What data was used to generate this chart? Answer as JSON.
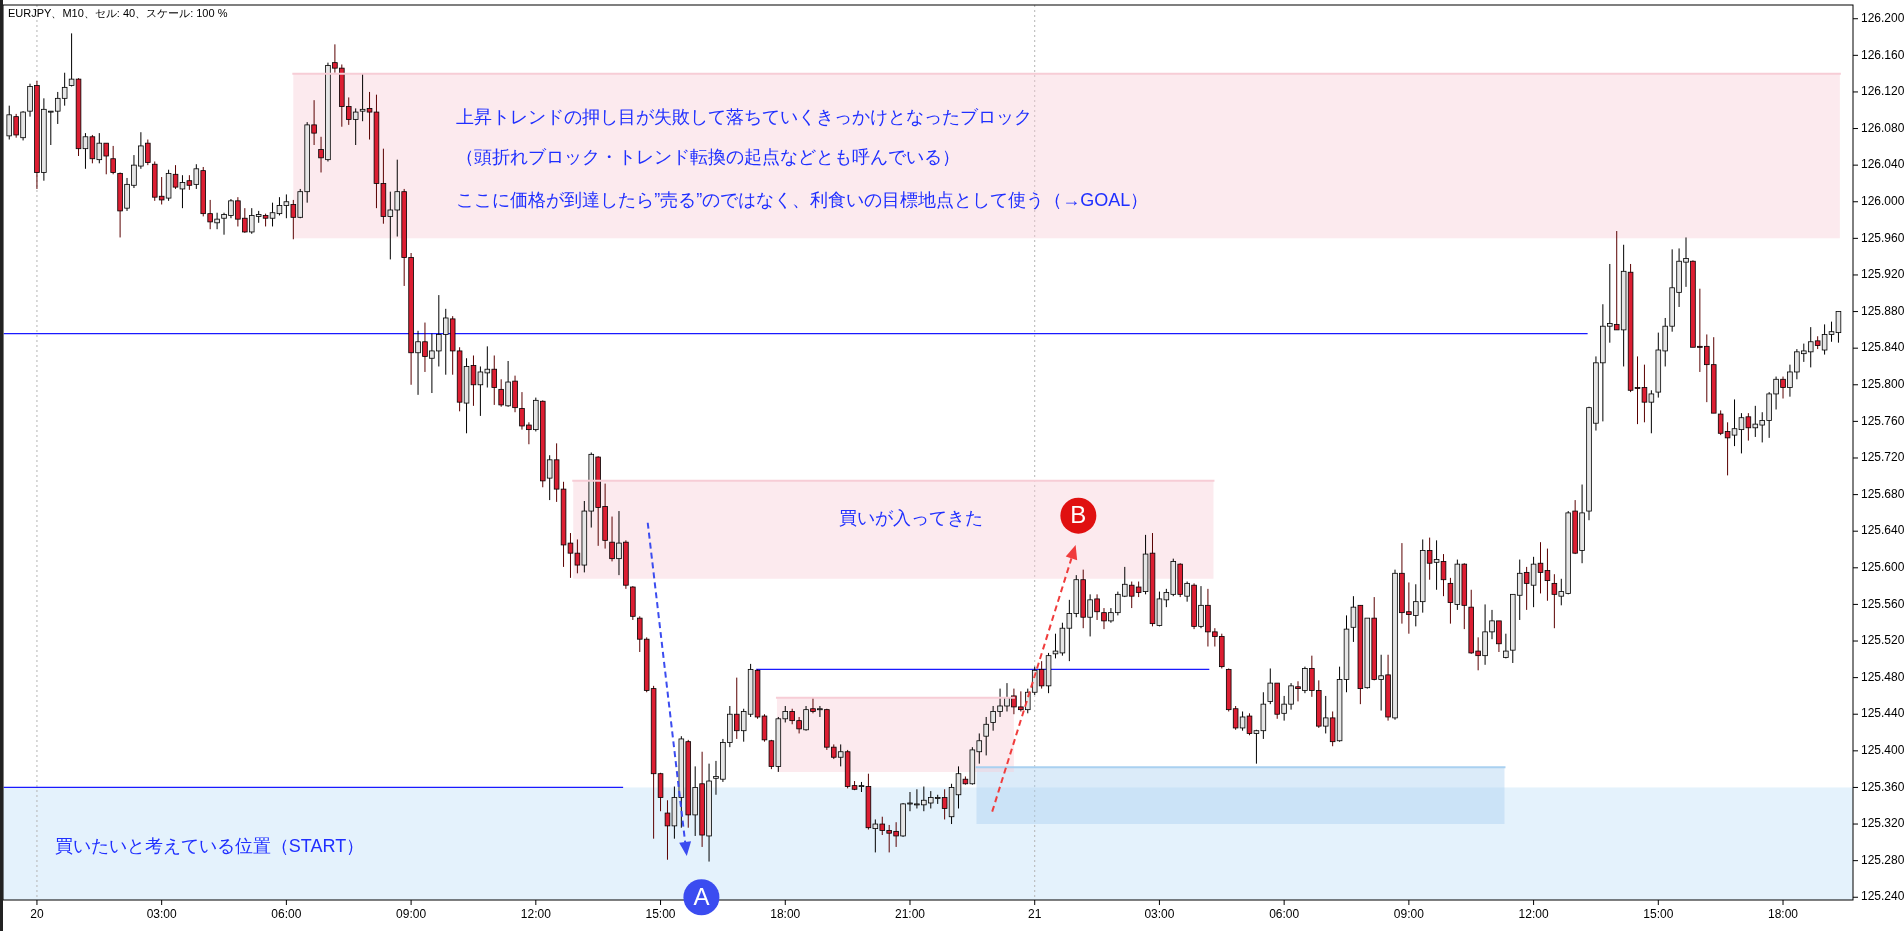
{
  "chart_data": {
    "type": "candlestick",
    "title": "EURJPY、M10、セル: 40、スケール: 100 %",
    "ylim": [
      125.237,
      126.215
    ],
    "xlim": [
      "--01-19T23:11",
      "--01-21T19:41"
    ],
    "xticks": [
      {
        "value": "--01-20T00:00",
        "label": "20"
      },
      {
        "value": "--01-20T03:00",
        "label": "03:00"
      },
      {
        "value": "--01-20T06:00",
        "label": "06:00"
      },
      {
        "value": "--01-20T09:00",
        "label": "09:00"
      },
      {
        "value": "--01-20T12:00",
        "label": "12:00"
      },
      {
        "value": "--01-20T15:00",
        "label": "15:00"
      },
      {
        "value": "--01-20T18:00",
        "label": "18:00"
      },
      {
        "value": "--01-20T21:00",
        "label": "21:00"
      },
      {
        "value": "--01-21T00:00",
        "label": "21"
      },
      {
        "value": "--01-21T03:00",
        "label": "03:00"
      },
      {
        "value": "--01-21T06:00",
        "label": "06:00"
      },
      {
        "value": "--01-21T09:00",
        "label": "09:00"
      },
      {
        "value": "--01-21T12:00",
        "label": "12:00"
      },
      {
        "value": "--01-21T15:00",
        "label": "15:00"
      },
      {
        "value": "--01-21T18:00",
        "label": "18:00"
      }
    ],
    "x": [
      "--01-19T23:20",
      "--01-19T23:30",
      "--01-19T23:40",
      "--01-19T23:50",
      "--01-20T00:00",
      "--01-20T00:10",
      "--01-20T00:20",
      "--01-20T00:30",
      "--01-20T00:40",
      "--01-20T00:50",
      "--01-20T01:00",
      "--01-20T01:10",
      "--01-20T01:20",
      "--01-20T01:30",
      "--01-20T01:40",
      "--01-20T01:50",
      "--01-20T02:00",
      "--01-20T02:10",
      "--01-20T02:20",
      "--01-20T02:30",
      "--01-20T02:40",
      "--01-20T02:50",
      "--01-20T03:00",
      "--01-20T03:10",
      "--01-20T03:20",
      "--01-20T03:30",
      "--01-20T03:40",
      "--01-20T03:50",
      "--01-20T04:00",
      "--01-20T04:10",
      "--01-20T04:20",
      "--01-20T04:30",
      "--01-20T04:40",
      "--01-20T04:50",
      "--01-20T05:00",
      "--01-20T05:10",
      "--01-20T05:20",
      "--01-20T05:30",
      "--01-20T05:40",
      "--01-20T05:50",
      "--01-20T06:00",
      "--01-20T06:10",
      "--01-20T06:20",
      "--01-20T06:30",
      "--01-20T06:40",
      "--01-20T06:50",
      "--01-20T07:00",
      "--01-20T07:10",
      "--01-20T07:20",
      "--01-20T07:30",
      "--01-20T07:40",
      "--01-20T07:50",
      "--01-20T08:00",
      "--01-20T08:10",
      "--01-20T08:20",
      "--01-20T08:30",
      "--01-20T08:40",
      "--01-20T08:50",
      "--01-20T09:00",
      "--01-20T09:10",
      "--01-20T09:20",
      "--01-20T09:30",
      "--01-20T09:40",
      "--01-20T09:50",
      "--01-20T10:00",
      "--01-20T10:10",
      "--01-20T10:20",
      "--01-20T10:30",
      "--01-20T10:40",
      "--01-20T10:50",
      "--01-20T11:00",
      "--01-20T11:10",
      "--01-20T11:20",
      "--01-20T11:30",
      "--01-20T11:40",
      "--01-20T11:50",
      "--01-20T12:00",
      "--01-20T12:10",
      "--01-20T12:20",
      "--01-20T12:30",
      "--01-20T12:40",
      "--01-20T12:50",
      "--01-20T13:00",
      "--01-20T13:10",
      "--01-20T13:20",
      "--01-20T13:30",
      "--01-20T13:40",
      "--01-20T13:50",
      "--01-20T14:00",
      "--01-20T14:10",
      "--01-20T14:20",
      "--01-20T14:30",
      "--01-20T14:40",
      "--01-20T14:50",
      "--01-20T15:00",
      "--01-20T15:10",
      "--01-20T15:20",
      "--01-20T15:30",
      "--01-20T15:40",
      "--01-20T15:50",
      "--01-20T16:00",
      "--01-20T16:10",
      "--01-20T16:20",
      "--01-20T16:30",
      "--01-20T16:40",
      "--01-20T16:50",
      "--01-20T17:00",
      "--01-20T17:10",
      "--01-20T17:20",
      "--01-20T17:30",
      "--01-20T17:40",
      "--01-20T17:50",
      "--01-20T18:00",
      "--01-20T18:10",
      "--01-20T18:20",
      "--01-20T18:30",
      "--01-20T18:40",
      "--01-20T18:50",
      "--01-20T19:00",
      "--01-20T19:10",
      "--01-20T19:20",
      "--01-20T19:30",
      "--01-20T19:40",
      "--01-20T19:50",
      "--01-20T20:00",
      "--01-20T20:10",
      "--01-20T20:20",
      "--01-20T20:30",
      "--01-20T20:40",
      "--01-20T20:50",
      "--01-20T21:00",
      "--01-20T21:10",
      "--01-20T21:20",
      "--01-20T21:30",
      "--01-20T21:40",
      "--01-20T21:50",
      "--01-20T22:00",
      "--01-20T22:10",
      "--01-20T22:20",
      "--01-20T22:30",
      "--01-20T22:40",
      "--01-20T22:50",
      "--01-20T23:00",
      "--01-20T23:10",
      "--01-20T23:20",
      "--01-20T23:30",
      "--01-20T23:40",
      "--01-20T23:50",
      "--01-21T00:00",
      "--01-21T00:10",
      "--01-21T00:20",
      "--01-21T00:30",
      "--01-21T00:40",
      "--01-21T00:50",
      "--01-21T01:00",
      "--01-21T01:10",
      "--01-21T01:20",
      "--01-21T01:30",
      "--01-21T01:40",
      "--01-21T01:50",
      "--01-21T02:00",
      "--01-21T02:10",
      "--01-21T02:20",
      "--01-21T02:30",
      "--01-21T02:40",
      "--01-21T02:50",
      "--01-21T03:00",
      "--01-21T03:10",
      "--01-21T03:20",
      "--01-21T03:30",
      "--01-21T03:40",
      "--01-21T03:50",
      "--01-21T04:00",
      "--01-21T04:10",
      "--01-21T04:20",
      "--01-21T04:30",
      "--01-21T04:40",
      "--01-21T04:50",
      "--01-21T05:00",
      "--01-21T05:10",
      "--01-21T05:20",
      "--01-21T05:30",
      "--01-21T05:40",
      "--01-21T05:50",
      "--01-21T06:00",
      "--01-21T06:10",
      "--01-21T06:20",
      "--01-21T06:30",
      "--01-21T06:40",
      "--01-21T06:50",
      "--01-21T07:00",
      "--01-21T07:10",
      "--01-21T07:20",
      "--01-21T07:30",
      "--01-21T07:40",
      "--01-21T07:50",
      "--01-21T08:00",
      "--01-21T08:10",
      "--01-21T08:20",
      "--01-21T08:30",
      "--01-21T08:40",
      "--01-21T08:50",
      "--01-21T09:00",
      "--01-21T09:10",
      "--01-21T09:20",
      "--01-21T09:30",
      "--01-21T09:40",
      "--01-21T09:50",
      "--01-21T10:00",
      "--01-21T10:10",
      "--01-21T10:20",
      "--01-21T10:30",
      "--01-21T10:40",
      "--01-21T10:50",
      "--01-21T11:00",
      "--01-21T11:10",
      "--01-21T11:20",
      "--01-21T11:30",
      "--01-21T11:40",
      "--01-21T11:50",
      "--01-21T12:00",
      "--01-21T12:10",
      "--01-21T12:20",
      "--01-21T12:30",
      "--01-21T12:40",
      "--01-21T12:50",
      "--01-21T13:00",
      "--01-21T13:10",
      "--01-21T13:20",
      "--01-21T13:30",
      "--01-21T13:40",
      "--01-21T13:50",
      "--01-21T14:00",
      "--01-21T14:10",
      "--01-21T14:20",
      "--01-21T14:30",
      "--01-21T14:40",
      "--01-21T14:50",
      "--01-21T15:00",
      "--01-21T15:10",
      "--01-21T15:20",
      "--01-21T15:30",
      "--01-21T15:40",
      "--01-21T15:50",
      "--01-21T16:00",
      "--01-21T16:10",
      "--01-21T16:20",
      "--01-21T16:30",
      "--01-21T16:40",
      "--01-21T16:50",
      "--01-21T17:00",
      "--01-21T17:10",
      "--01-21T17:20",
      "--01-21T17:30",
      "--01-21T17:40",
      "--01-21T17:50",
      "--01-21T18:00",
      "--01-21T18:10",
      "--01-21T18:20",
      "--01-21T18:30",
      "--01-21T18:40",
      "--01-21T18:50",
      "--01-21T19:00",
      "--01-21T19:10",
      "--01-21T19:20"
    ],
    "yticks": [
      {
        "value": 125.24,
        "label": "125.240"
      },
      {
        "value": 125.28,
        "label": "125.280"
      },
      {
        "value": 125.32,
        "label": "125.320"
      },
      {
        "value": 125.36,
        "label": "125.360"
      },
      {
        "value": 125.4,
        "label": "125.400"
      },
      {
        "value": 125.44,
        "label": "125.440"
      },
      {
        "value": 125.48,
        "label": "125.480"
      },
      {
        "value": 125.52,
        "label": "125.520"
      },
      {
        "value": 125.56,
        "label": "125.560"
      },
      {
        "value": 125.6,
        "label": "125.600"
      },
      {
        "value": 125.64,
        "label": "125.640"
      },
      {
        "value": 125.68,
        "label": "125.680"
      },
      {
        "value": 125.72,
        "label": "125.720"
      },
      {
        "value": 125.76,
        "label": "125.760"
      },
      {
        "value": 125.8,
        "label": "125.800"
      },
      {
        "value": 125.84,
        "label": "125.840"
      },
      {
        "value": 125.88,
        "label": "125.880"
      },
      {
        "value": 125.92,
        "label": "125.920"
      },
      {
        "value": 125.96,
        "label": "125.960"
      },
      {
        "value": 126.0,
        "label": "126.000"
      },
      {
        "value": 126.04,
        "label": "126.040"
      },
      {
        "value": 126.08,
        "label": "126.080"
      },
      {
        "value": 126.12,
        "label": "126.120"
      },
      {
        "value": 126.16,
        "label": "126.160"
      },
      {
        "value": 126.2,
        "label": "126.200"
      }
    ],
    "grid": false,
    "ohlc": [
      [
        126.072,
        126.105,
        126.068,
        126.095
      ],
      [
        126.093,
        126.096,
        126.07,
        126.073
      ],
      [
        126.07,
        126.099,
        126.067,
        126.098
      ],
      [
        126.099,
        126.129,
        126.093,
        126.126
      ],
      [
        126.127,
        126.132,
        126.014,
        126.032
      ],
      [
        126.032,
        126.113,
        126.023,
        126.101
      ],
      [
        126.098,
        126.099,
        126.062,
        126.099
      ],
      [
        126.099,
        126.12,
        126.085,
        126.113
      ],
      [
        126.113,
        126.141,
        126.105,
        126.125
      ],
      [
        126.127,
        126.184,
        126.126,
        126.134
      ],
      [
        126.134,
        126.135,
        126.05,
        126.058
      ],
      [
        126.058,
        126.075,
        126.036,
        126.071
      ],
      [
        126.071,
        126.073,
        126.042,
        126.047
      ],
      [
        126.046,
        126.075,
        126.042,
        126.064
      ],
      [
        126.064,
        126.064,
        126.03,
        126.05
      ],
      [
        126.047,
        126.061,
        126.03,
        126.032
      ],
      [
        126.031,
        126.032,
        125.961,
        125.99
      ],
      [
        125.993,
        126.026,
        125.99,
        126.019
      ],
      [
        126.018,
        126.051,
        126.015,
        126.04
      ],
      [
        126.039,
        126.076,
        126.036,
        126.061
      ],
      [
        126.064,
        126.068,
        126.04,
        126.043
      ],
      [
        126.041,
        126.044,
        126.001,
        126.005
      ],
      [
        126.006,
        126.027,
        125.997,
        126.002
      ],
      [
        126.004,
        126.035,
        126.001,
        126.031
      ],
      [
        126.03,
        126.04,
        126.014,
        126.016
      ],
      [
        126.014,
        126.029,
        125.993,
        126.021
      ],
      [
        126.023,
        126.029,
        126.013,
        126.018
      ],
      [
        126.019,
        126.041,
        126.014,
        126.036
      ],
      [
        126.034,
        126.038,
        125.984,
        125.987
      ],
      [
        125.987,
        126.002,
        125.97,
        125.978
      ],
      [
        125.977,
        125.988,
        125.97,
        125.981
      ],
      [
        125.982,
        125.988,
        125.964,
        125.986
      ],
      [
        125.985,
        126.003,
        125.982,
        126.001
      ],
      [
        126.001,
        126.005,
        125.973,
        125.981
      ],
      [
        125.982,
        125.993,
        125.966,
        125.967
      ],
      [
        125.967,
        125.993,
        125.965,
        125.985
      ],
      [
        125.984,
        125.99,
        125.977,
        125.986
      ],
      [
        125.985,
        125.987,
        125.973,
        125.982
      ],
      [
        125.982,
        125.999,
        125.973,
        125.988
      ],
      [
        125.987,
        126.005,
        125.985,
        125.996
      ],
      [
        125.996,
        126.008,
        125.982,
        126.0
      ],
      [
        125.997,
        126.002,
        125.959,
        125.983
      ],
      [
        125.983,
        126.014,
        125.982,
        126.011
      ],
      [
        126.011,
        126.087,
        125.999,
        126.084
      ],
      [
        126.084,
        126.111,
        126.062,
        126.075
      ],
      [
        126.057,
        126.071,
        126.032,
        126.048
      ],
      [
        126.046,
        126.152,
        126.044,
        126.149
      ],
      [
        126.152,
        126.172,
        126.141,
        126.146
      ],
      [
        126.146,
        126.15,
        126.082,
        126.104
      ],
      [
        126.104,
        126.114,
        126.084,
        126.09
      ],
      [
        126.09,
        126.102,
        126.062,
        126.098
      ],
      [
        126.099,
        126.14,
        126.088,
        126.101
      ],
      [
        126.102,
        126.12,
        126.068,
        126.098
      ],
      [
        126.098,
        126.117,
        125.993,
        126.02
      ],
      [
        126.02,
        126.058,
        125.976,
        125.984
      ],
      [
        125.984,
        126.011,
        125.937,
        125.991
      ],
      [
        125.991,
        126.046,
        125.962,
        126.011
      ],
      [
        126.011,
        126.014,
        125.908,
        125.939
      ],
      [
        125.939,
        125.944,
        125.8,
        125.835
      ],
      [
        125.835,
        125.859,
        125.789,
        125.847
      ],
      [
        125.847,
        125.868,
        125.814,
        125.831
      ],
      [
        125.829,
        125.856,
        125.791,
        125.837
      ],
      [
        125.837,
        125.898,
        125.82,
        125.855
      ],
      [
        125.855,
        125.883,
        125.811,
        125.873
      ],
      [
        125.872,
        125.875,
        125.811,
        125.837
      ],
      [
        125.837,
        125.841,
        125.771,
        125.781
      ],
      [
        125.78,
        125.829,
        125.747,
        125.82
      ],
      [
        125.821,
        125.832,
        125.777,
        125.8
      ],
      [
        125.8,
        125.82,
        125.766,
        125.814
      ],
      [
        125.813,
        125.842,
        125.797,
        125.817
      ],
      [
        125.817,
        125.832,
        125.778,
        125.797
      ],
      [
        125.795,
        125.806,
        125.776,
        125.778
      ],
      [
        125.777,
        125.826,
        125.776,
        125.803
      ],
      [
        125.804,
        125.81,
        125.77,
        125.775
      ],
      [
        125.774,
        125.792,
        125.751,
        125.755
      ],
      [
        125.756,
        125.759,
        125.735,
        125.751
      ],
      [
        125.751,
        125.786,
        125.749,
        125.783
      ],
      [
        125.782,
        125.783,
        125.688,
        125.695
      ],
      [
        125.698,
        125.723,
        125.674,
        125.718
      ],
      [
        125.718,
        125.736,
        125.672,
        125.686
      ],
      [
        125.686,
        125.694,
        125.601,
        125.625
      ],
      [
        125.627,
        125.638,
        125.589,
        125.616
      ],
      [
        125.616,
        125.631,
        125.594,
        125.603
      ],
      [
        125.603,
        125.673,
        125.595,
        125.662
      ],
      [
        125.662,
        125.726,
        125.644,
        125.724
      ],
      [
        125.721,
        125.722,
        125.624,
        125.666
      ],
      [
        125.667,
        125.692,
        125.621,
        125.63
      ],
      [
        125.628,
        125.656,
        125.607,
        125.61
      ],
      [
        125.61,
        125.662,
        125.592,
        125.627
      ],
      [
        125.628,
        125.63,
        125.577,
        125.581
      ],
      [
        125.579,
        125.58,
        125.543,
        125.547
      ],
      [
        125.545,
        125.547,
        125.508,
        125.522
      ],
      [
        125.522,
        125.524,
        125.464,
        125.466
      ],
      [
        125.468,
        125.471,
        125.304,
        125.375
      ],
      [
        125.375,
        125.376,
        125.334,
        125.349
      ],
      [
        125.332,
        125.346,
        125.281,
        125.318
      ],
      [
        125.318,
        125.361,
        125.304,
        125.349
      ],
      [
        125.349,
        125.416,
        125.316,
        125.413
      ],
      [
        125.41,
        125.412,
        125.316,
        125.33
      ],
      [
        125.33,
        125.383,
        125.307,
        125.36
      ],
      [
        125.364,
        125.399,
        125.295,
        125.308
      ],
      [
        125.307,
        125.386,
        125.279,
        125.367
      ],
      [
        125.37,
        125.389,
        125.352,
        125.372
      ],
      [
        125.369,
        125.413,
        125.366,
        125.409
      ],
      [
        125.409,
        125.449,
        125.404,
        125.44
      ],
      [
        125.44,
        125.48,
        125.413,
        125.422
      ],
      [
        125.422,
        125.446,
        125.41,
        125.443
      ],
      [
        125.44,
        125.495,
        125.437,
        125.489
      ],
      [
        125.488,
        125.489,
        125.435,
        125.437
      ],
      [
        125.438,
        125.44,
        125.41,
        125.412
      ],
      [
        125.411,
        125.412,
        125.38,
        125.383
      ],
      [
        125.383,
        125.437,
        125.377,
        125.435
      ],
      [
        125.435,
        125.449,
        125.431,
        125.443
      ],
      [
        125.443,
        125.446,
        125.429,
        125.433
      ],
      [
        125.433,
        125.437,
        125.419,
        125.424
      ],
      [
        125.423,
        125.449,
        125.422,
        125.445
      ],
      [
        125.446,
        125.458,
        125.441,
        125.443
      ],
      [
        125.445,
        125.449,
        125.437,
        125.446
      ],
      [
        125.445,
        125.446,
        125.401,
        125.404
      ],
      [
        125.404,
        125.407,
        125.391,
        125.393
      ],
      [
        125.393,
        125.407,
        125.383,
        125.399
      ],
      [
        125.399,
        125.401,
        125.359,
        125.361
      ],
      [
        125.362,
        125.367,
        125.357,
        125.358
      ],
      [
        125.361,
        125.366,
        125.355,
        125.362
      ],
      [
        125.361,
        125.375,
        125.314,
        125.316
      ],
      [
        125.315,
        125.325,
        125.289,
        125.32
      ],
      [
        125.32,
        125.328,
        125.308,
        125.313
      ],
      [
        125.313,
        125.319,
        125.289,
        125.31
      ],
      [
        125.312,
        125.322,
        125.295,
        125.307
      ],
      [
        125.307,
        125.343,
        125.306,
        125.342
      ],
      [
        125.342,
        125.355,
        125.334,
        125.343
      ],
      [
        125.341,
        125.358,
        125.337,
        125.342
      ],
      [
        125.341,
        125.361,
        125.334,
        125.346
      ],
      [
        125.343,
        125.356,
        125.337,
        125.349
      ],
      [
        125.348,
        125.352,
        125.342,
        125.349
      ],
      [
        125.349,
        125.358,
        125.325,
        125.337
      ],
      [
        125.328,
        125.364,
        125.32,
        125.36
      ],
      [
        125.352,
        125.383,
        125.337,
        125.375
      ],
      [
        125.369,
        125.372,
        125.363,
        125.364
      ],
      [
        125.364,
        125.404,
        125.363,
        125.401
      ],
      [
        125.399,
        125.419,
        125.386,
        125.411
      ],
      [
        125.416,
        125.437,
        125.395,
        125.429
      ],
      [
        125.431,
        125.449,
        125.422,
        125.443
      ],
      [
        125.443,
        125.468,
        125.437,
        125.449
      ],
      [
        125.449,
        125.474,
        125.443,
        125.458
      ],
      [
        125.46,
        125.468,
        125.44,
        125.448
      ],
      [
        125.448,
        125.465,
        125.443,
        125.445
      ],
      [
        125.445,
        125.468,
        125.441,
        125.464
      ],
      [
        125.464,
        125.492,
        125.461,
        125.488
      ],
      [
        125.489,
        125.498,
        125.468,
        125.471
      ],
      [
        125.471,
        125.507,
        125.463,
        125.504
      ],
      [
        125.506,
        125.528,
        125.501,
        125.509
      ],
      [
        125.507,
        125.54,
        125.504,
        125.534
      ],
      [
        125.534,
        125.565,
        125.498,
        125.55
      ],
      [
        125.55,
        125.592,
        125.546,
        125.587
      ],
      [
        125.587,
        125.598,
        125.534,
        125.546
      ],
      [
        125.546,
        125.571,
        125.525,
        125.565
      ],
      [
        125.566,
        125.571,
        125.543,
        125.552
      ],
      [
        125.551,
        125.556,
        125.533,
        125.542
      ],
      [
        125.542,
        125.556,
        125.54,
        125.551
      ],
      [
        125.551,
        125.574,
        125.548,
        125.571
      ],
      [
        125.569,
        125.601,
        125.568,
        125.582
      ],
      [
        125.581,
        125.585,
        125.556,
        125.569
      ],
      [
        125.579,
        125.585,
        125.568,
        125.573
      ],
      [
        125.574,
        125.636,
        125.571,
        125.615
      ],
      [
        125.616,
        125.638,
        125.536,
        125.539
      ],
      [
        125.537,
        125.574,
        125.536,
        125.566
      ],
      [
        125.565,
        125.577,
        125.557,
        125.573
      ],
      [
        125.571,
        125.61,
        125.569,
        125.607
      ],
      [
        125.604,
        125.605,
        125.568,
        125.571
      ],
      [
        125.569,
        125.585,
        125.563,
        125.583
      ],
      [
        125.581,
        125.583,
        125.533,
        125.536
      ],
      [
        125.536,
        125.58,
        125.534,
        125.559
      ],
      [
        125.559,
        125.577,
        125.514,
        125.53
      ],
      [
        125.53,
        125.534,
        125.514,
        125.525
      ],
      [
        125.525,
        125.528,
        125.49,
        125.492
      ],
      [
        125.489,
        125.49,
        125.443,
        125.445
      ],
      [
        125.446,
        125.449,
        125.423,
        125.425
      ],
      [
        125.425,
        125.443,
        125.422,
        125.437
      ],
      [
        125.438,
        125.441,
        125.417,
        125.419
      ],
      [
        125.419,
        125.423,
        125.386,
        125.422
      ],
      [
        125.422,
        125.464,
        125.413,
        125.451
      ],
      [
        125.454,
        125.49,
        125.451,
        125.474
      ],
      [
        125.474,
        125.474,
        125.435,
        125.44
      ],
      [
        125.441,
        125.46,
        125.433,
        125.451
      ],
      [
        125.451,
        125.474,
        125.445,
        125.471
      ],
      [
        125.47,
        125.476,
        125.454,
        125.468
      ],
      [
        125.466,
        125.492,
        125.463,
        125.49
      ],
      [
        125.49,
        125.504,
        125.459,
        125.466
      ],
      [
        125.466,
        125.477,
        125.425,
        125.427
      ],
      [
        125.427,
        125.46,
        125.419,
        125.436
      ],
      [
        125.436,
        125.443,
        125.405,
        125.41
      ],
      [
        125.411,
        125.492,
        125.41,
        125.478
      ],
      [
        125.478,
        125.548,
        125.464,
        125.533
      ],
      [
        125.535,
        125.569,
        125.519,
        125.557
      ],
      [
        125.559,
        125.559,
        125.451,
        125.468
      ],
      [
        125.469,
        125.545,
        125.468,
        125.545
      ],
      [
        125.545,
        125.568,
        125.477,
        125.478
      ],
      [
        125.478,
        125.505,
        125.444,
        125.482
      ],
      [
        125.483,
        125.505,
        125.433,
        125.437
      ],
      [
        125.436,
        125.598,
        125.434,
        125.594
      ],
      [
        125.594,
        125.627,
        125.539,
        125.551
      ],
      [
        125.552,
        125.584,
        125.528,
        125.549
      ],
      [
        125.548,
        125.582,
        125.536,
        125.563
      ],
      [
        125.563,
        125.631,
        125.551,
        125.619
      ],
      [
        125.619,
        125.633,
        125.587,
        125.605
      ],
      [
        125.606,
        125.63,
        125.576,
        125.609
      ],
      [
        125.607,
        125.615,
        125.569,
        125.587
      ],
      [
        125.583,
        125.589,
        125.539,
        125.562
      ],
      [
        125.56,
        125.609,
        125.554,
        125.604
      ],
      [
        125.604,
        125.605,
        125.533,
        125.559
      ],
      [
        125.557,
        125.576,
        125.506,
        125.507
      ],
      [
        125.509,
        125.524,
        125.488,
        125.504
      ],
      [
        125.504,
        125.56,
        125.494,
        125.53
      ],
      [
        125.53,
        125.554,
        125.522,
        125.542
      ],
      [
        125.542,
        125.542,
        125.508,
        125.517
      ],
      [
        125.502,
        125.528,
        125.501,
        125.509
      ],
      [
        125.51,
        125.571,
        125.496,
        125.571
      ],
      [
        125.57,
        125.609,
        125.543,
        125.594
      ],
      [
        125.595,
        125.601,
        125.554,
        125.583
      ],
      [
        125.581,
        125.612,
        125.557,
        125.604
      ],
      [
        125.605,
        125.628,
        125.572,
        125.595
      ],
      [
        125.597,
        125.621,
        125.564,
        125.586
      ],
      [
        125.583,
        125.593,
        125.534,
        125.571
      ],
      [
        125.569,
        125.588,
        125.559,
        125.574
      ],
      [
        125.572,
        125.662,
        125.571,
        125.66
      ],
      [
        125.662,
        125.674,
        125.615,
        125.616
      ],
      [
        125.619,
        125.691,
        125.605,
        125.66
      ],
      [
        125.662,
        125.776,
        125.652,
        125.775
      ],
      [
        125.758,
        125.831,
        125.75,
        125.824
      ],
      [
        125.824,
        125.888,
        125.76,
        125.864
      ],
      [
        125.864,
        125.932,
        125.846,
        125.867
      ],
      [
        125.866,
        125.968,
        125.86,
        125.86
      ],
      [
        125.86,
        125.953,
        125.82,
        125.924
      ],
      [
        125.923,
        125.932,
        125.792,
        125.794
      ],
      [
        125.797,
        125.831,
        125.757,
        125.796
      ],
      [
        125.797,
        125.822,
        125.759,
        125.781
      ],
      [
        125.781,
        125.794,
        125.747,
        125.79
      ],
      [
        125.792,
        125.857,
        125.786,
        125.838
      ],
      [
        125.837,
        125.873,
        125.82,
        125.864
      ],
      [
        125.864,
        125.948,
        125.858,
        125.906
      ],
      [
        125.901,
        125.949,
        125.885,
        125.935
      ],
      [
        125.934,
        125.961,
        125.907,
        125.938
      ],
      [
        125.935,
        125.936,
        125.841,
        125.841
      ],
      [
        125.842,
        125.905,
        125.814,
        125.841
      ],
      [
        125.842,
        125.855,
        125.781,
        125.822
      ],
      [
        125.822,
        125.852,
        125.769,
        125.769
      ],
      [
        125.768,
        125.772,
        125.745,
        125.747
      ],
      [
        125.749,
        125.759,
        125.701,
        125.742
      ],
      [
        125.745,
        125.784,
        125.733,
        125.752
      ],
      [
        125.751,
        125.769,
        125.725,
        125.764
      ],
      [
        125.765,
        125.769,
        125.739,
        125.753
      ],
      [
        125.753,
        125.777,
        125.743,
        125.757
      ],
      [
        125.756,
        125.77,
        125.737,
        125.761
      ],
      [
        125.761,
        125.792,
        125.742,
        125.79
      ],
      [
        125.79,
        125.809,
        125.773,
        125.806
      ],
      [
        125.806,
        125.809,
        125.785,
        125.797
      ],
      [
        125.797,
        125.822,
        125.787,
        125.814
      ],
      [
        125.814,
        125.839,
        125.806,
        125.836
      ],
      [
        125.834,
        125.845,
        125.825,
        125.837
      ],
      [
        125.836,
        125.863,
        125.819,
        125.847
      ],
      [
        125.848,
        125.853,
        125.839,
        125.843
      ],
      [
        125.838,
        125.866,
        125.833,
        125.855
      ],
      [
        125.855,
        125.869,
        125.847,
        125.858
      ],
      [
        125.857,
        125.88,
        125.846,
        125.88
      ]
    ],
    "colors": [
      "#e6e6e6",
      "#dc1e32",
      "#e6e6e6",
      "#e6e6e6",
      "#dc1e32",
      "#e6e6e6",
      "#e6e6e6",
      "#e6e6e6",
      "#e6e6e6",
      "#e6e6e6",
      "#dc1e32",
      "#e6e6e6",
      "#dc1e32",
      "#e6e6e6",
      "#dc1e32",
      "#dc1e32",
      "#dc1e32",
      "#e6e6e6",
      "#e6e6e6",
      "#e6e6e6",
      "#dc1e32",
      "#dc1e32",
      "#dc1e32",
      "#e6e6e6",
      "#dc1e32",
      "#e6e6e6",
      "#dc1e32",
      "#e6e6e6",
      "#dc1e32",
      "#dc1e32",
      "#e6e6e6",
      "#e6e6e6",
      "#e6e6e6",
      "#dc1e32",
      "#dc1e32",
      "#e6e6e6",
      "#e6e6e6",
      "#dc1e32",
      "#e6e6e6",
      "#e6e6e6",
      "#e6e6e6",
      "#dc1e32",
      "#e6e6e6",
      "#e6e6e6",
      "#dc1e32",
      "#dc1e32",
      "#e6e6e6",
      "#dc1e32",
      "#dc1e32",
      "#dc1e32",
      "#e6e6e6",
      "#e6e6e6",
      "#dc1e32",
      "#dc1e32",
      "#dc1e32",
      "#e6e6e6",
      "#e6e6e6",
      "#dc1e32",
      "#dc1e32",
      "#e6e6e6",
      "#dc1e32",
      "#e6e6e6",
      "#e6e6e6",
      "#e6e6e6",
      "#dc1e32",
      "#dc1e32",
      "#e6e6e6",
      "#dc1e32",
      "#e6e6e6",
      "#e6e6e6",
      "#dc1e32",
      "#dc1e32",
      "#e6e6e6",
      "#dc1e32",
      "#dc1e32",
      "#dc1e32",
      "#e6e6e6",
      "#dc1e32",
      "#e6e6e6",
      "#dc1e32",
      "#dc1e32",
      "#dc1e32",
      "#dc1e32",
      "#e6e6e6",
      "#e6e6e6",
      "#dc1e32",
      "#dc1e32",
      "#dc1e32",
      "#e6e6e6",
      "#dc1e32",
      "#dc1e32",
      "#dc1e32",
      "#dc1e32",
      "#dc1e32",
      "#dc1e32",
      "#dc1e32",
      "#e6e6e6",
      "#e6e6e6",
      "#dc1e32",
      "#e6e6e6",
      "#dc1e32",
      "#e6e6e6",
      "#e6e6e6",
      "#e6e6e6",
      "#e6e6e6",
      "#dc1e32",
      "#e6e6e6",
      "#e6e6e6",
      "#dc1e32",
      "#dc1e32",
      "#dc1e32",
      "#e6e6e6",
      "#e6e6e6",
      "#dc1e32",
      "#dc1e32",
      "#e6e6e6",
      "#dc1e32",
      "#e6e6e6",
      "#dc1e32",
      "#dc1e32",
      "#e6e6e6",
      "#dc1e32",
      "#dc1e32",
      "#e6e6e6",
      "#dc1e32",
      "#e6e6e6",
      "#dc1e32",
      "#dc1e32",
      "#dc1e32",
      "#e6e6e6",
      "#e6e6e6",
      "#e6e6e6",
      "#e6e6e6",
      "#e6e6e6",
      "#e6e6e6",
      "#dc1e32",
      "#e6e6e6",
      "#e6e6e6",
      "#dc1e32",
      "#e6e6e6",
      "#e6e6e6",
      "#e6e6e6",
      "#e6e6e6",
      "#e6e6e6",
      "#e6e6e6",
      "#dc1e32",
      "#dc1e32",
      "#e6e6e6",
      "#e6e6e6",
      "#dc1e32",
      "#e6e6e6",
      "#e6e6e6",
      "#e6e6e6",
      "#e6e6e6",
      "#e6e6e6",
      "#dc1e32",
      "#e6e6e6",
      "#dc1e32",
      "#dc1e32",
      "#e6e6e6",
      "#e6e6e6",
      "#e6e6e6",
      "#dc1e32",
      "#dc1e32",
      "#e6e6e6",
      "#dc1e32",
      "#e6e6e6",
      "#e6e6e6",
      "#e6e6e6",
      "#dc1e32",
      "#e6e6e6",
      "#dc1e32",
      "#e6e6e6",
      "#dc1e32",
      "#dc1e32",
      "#dc1e32",
      "#dc1e32",
      "#dc1e32",
      "#e6e6e6",
      "#dc1e32",
      "#e6e6e6",
      "#e6e6e6",
      "#e6e6e6",
      "#dc1e32",
      "#e6e6e6",
      "#e6e6e6",
      "#dc1e32",
      "#e6e6e6",
      "#dc1e32",
      "#dc1e32",
      "#e6e6e6",
      "#dc1e32",
      "#e6e6e6",
      "#e6e6e6",
      "#e6e6e6",
      "#dc1e32",
      "#e6e6e6",
      "#dc1e32",
      "#e6e6e6",
      "#dc1e32",
      "#e6e6e6",
      "#dc1e32",
      "#dc1e32",
      "#e6e6e6",
      "#e6e6e6",
      "#dc1e32",
      "#e6e6e6",
      "#dc1e32",
      "#dc1e32",
      "#e6e6e6",
      "#dc1e32",
      "#dc1e32",
      "#dc1e32",
      "#e6e6e6",
      "#e6e6e6",
      "#dc1e32",
      "#e6e6e6",
      "#e6e6e6",
      "#e6e6e6",
      "#dc1e32",
      "#e6e6e6",
      "#dc1e32",
      "#dc1e32",
      "#dc1e32",
      "#e6e6e6",
      "#e6e6e6",
      "#dc1e32",
      "#e6e6e6",
      "#e6e6e6",
      "#e6e6e6",
      "#e6e6e6",
      "#e6e6e6",
      "#dc1e32",
      "#e6e6e6",
      "#dc1e32",
      "#dc1e32",
      "#dc1e32",
      "#e6e6e6",
      "#e6e6e6",
      "#e6e6e6",
      "#e6e6e6",
      "#e6e6e6",
      "#e6e6e6",
      "#dc1e32",
      "#dc1e32",
      "#dc1e32",
      "#dc1e32",
      "#dc1e32",
      "#dc1e32",
      "#e6e6e6",
      "#e6e6e6",
      "#dc1e32",
      "#e6e6e6",
      "#e6e6e6",
      "#e6e6e6",
      "#e6e6e6",
      "#dc1e32",
      "#e6e6e6",
      "#e6e6e6",
      "#e6e6e6",
      "#e6e6e6",
      "#dc1e32",
      "#e6e6e6",
      "#e6e6e6",
      "#e6e6e6"
    ],
    "series": [
      {
        "type": "line",
        "x": [
          "--01-20T22:36",
          "--01-21T11:18"
        ],
        "values": [
          125.382,
          125.382
        ],
        "lower": [
          125.32,
          125.32
        ],
        "upper": [
          125.382,
          125.382
        ],
        "color": "#a9d0f0"
      },
      {
        "type": "line",
        "x": [
          "--01-20T06:10",
          "--01-21T19:22"
        ],
        "values": [
          126.14,
          126.14
        ],
        "lower": [
          125.96,
          125.96
        ],
        "upper": [
          126.14,
          126.14
        ],
        "color": "#f7cdd6"
      },
      {
        "type": "line",
        "x": [
          "--01-20T12:54",
          "--01-21T04:18"
        ],
        "values": [
          125.695,
          125.695
        ],
        "lower": [
          125.588,
          125.588
        ],
        "upper": [
          125.695,
          125.695
        ],
        "color": "#f7cdd6"
      },
      {
        "type": "line",
        "x": [
          "--01-20T17:48",
          "--01-20T23:30"
        ],
        "values": [
          125.458,
          125.458
        ],
        "lower": [
          125.377,
          125.377
        ],
        "upper": [
          125.458,
          125.458
        ],
        "color": "#f7cdd6"
      },
      {
        "type": "line",
        "x": [
          "--01-19T23:12",
          "--01-21T13:18"
        ],
        "values": [
          125.856,
          125.856
        ],
        "color": "#1a1aff",
        "line_style": "solid"
      },
      {
        "type": "line",
        "x": [
          "--01-19T23:12",
          "--01-20T14:06"
        ],
        "values": [
          125.36,
          125.36
        ],
        "color": "#1a1aff",
        "line_style": "solid"
      },
      {
        "type": "line",
        "x": [
          "--01-20T17:18",
          "--01-21T04:12"
        ],
        "values": [
          125.489,
          125.489
        ],
        "color": "#1a1aff",
        "line_style": "solid"
      },
      {
        "type": "scatter",
        "name": "A",
        "x": [
          "--01-20T15:59"
        ],
        "values": [
          125.24
        ],
        "color": "#3b4cf0",
        "marker": "circle"
      },
      {
        "type": "scatter",
        "name": "B",
        "x": [
          "--01-21T01:03"
        ],
        "values": [
          125.657
        ],
        "color": "#e01010",
        "marker": "circle"
      }
    ],
    "bands": [
      {
        "axis": "y",
        "from": 125.237,
        "to": 125.36,
        "color": "#e4f2fc"
      }
    ],
    "ref_lines": [
      {
        "axis": "x",
        "value": "--01-20T00:00",
        "color": "#b4b4b4",
        "line_style": "dotted"
      },
      {
        "axis": "x",
        "value": "--01-21T00:00",
        "color": "#b4b4b4",
        "line_style": "dotted"
      }
    ],
    "annotations": [
      "上昇トレンドの押し目が失敗して落ちていくきっかけとなったブロック",
      "（頭折れブロック・トレンド転換の起点などとも呼んでいる）",
      "ここに価格が到達したら”売る”のではなく、利食いの目標地点として使う（→GOAL）",
      "買いが入ってきた",
      "買いたいと考えている位置（START）"
    ]
  }
}
